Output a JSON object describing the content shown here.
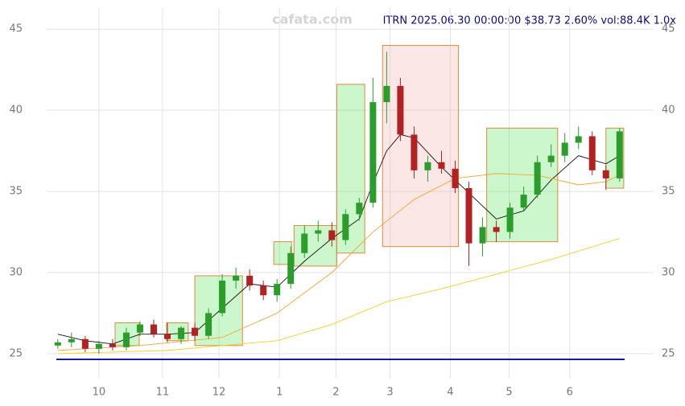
{
  "chart_data": {
    "type": "candlestick",
    "title": "ITRN 2025.06.30 00:00:00 $38.73 2.60% vol:88.4K 1.0x",
    "watermark": "cafata.com",
    "xlim": [
      -2,
      208
    ],
    "ylim": [
      24.5,
      46.3
    ],
    "yticks": [
      25,
      30,
      35,
      40,
      45
    ],
    "xticks": [
      {
        "value": 15,
        "label": "10"
      },
      {
        "value": 38.2,
        "label": "11"
      },
      {
        "value": 58.8,
        "label": "12"
      },
      {
        "value": 80.9,
        "label": "1"
      },
      {
        "value": 101.5,
        "label": "2"
      },
      {
        "value": 121.2,
        "label": "3"
      },
      {
        "value": 143.2,
        "label": "4"
      },
      {
        "value": 164.7,
        "label": "5"
      },
      {
        "value": 186.8,
        "label": "6"
      }
    ],
    "grid": true,
    "up_color": "#2a9d2a",
    "down_color": "#b22222",
    "x": [
      0,
      5,
      10,
      15,
      20,
      25,
      30,
      35,
      40,
      45,
      50,
      55,
      60,
      65,
      70,
      75,
      80,
      85,
      90,
      95,
      100,
      105,
      110,
      115,
      120,
      125,
      130,
      135,
      140,
      145,
      150,
      155,
      160,
      165,
      170,
      175,
      180,
      185,
      190,
      195,
      200,
      205
    ],
    "open": [
      25.5,
      25.7,
      25.9,
      25.3,
      25.6,
      25.4,
      26.3,
      26.8,
      26.2,
      25.9,
      26.6,
      26.1,
      27.5,
      29.5,
      29.8,
      29.2,
      28.6,
      29.3,
      31.2,
      32.4,
      32.6,
      32.0,
      33.6,
      34.3,
      40.5,
      41.5,
      38.5,
      36.3,
      36.8,
      36.4,
      35.2,
      31.8,
      32.8,
      32.5,
      34.0,
      34.8,
      36.8,
      37.2,
      38.0,
      38.4,
      36.3,
      35.8
    ],
    "high": [
      25.9,
      26.3,
      26.1,
      25.8,
      25.9,
      26.6,
      27.0,
      27.1,
      26.9,
      26.7,
      26.9,
      27.8,
      29.9,
      30.3,
      30.2,
      29.5,
      29.6,
      31.6,
      32.9,
      33.2,
      33.1,
      33.9,
      34.6,
      42.0,
      43.6,
      42.0,
      39.0,
      37.2,
      37.5,
      36.9,
      35.6,
      33.4,
      33.2,
      34.3,
      35.3,
      37.2,
      37.9,
      38.6,
      39.0,
      38.7,
      36.6,
      38.9
    ],
    "low": [
      25.3,
      25.4,
      25.1,
      25.0,
      25.2,
      25.2,
      26.1,
      26.0,
      25.7,
      25.6,
      25.8,
      25.9,
      27.3,
      29.0,
      28.9,
      28.3,
      28.2,
      29.0,
      30.9,
      31.9,
      31.6,
      31.7,
      33.2,
      34.0,
      39.2,
      38.1,
      35.8,
      35.6,
      36.1,
      34.9,
      30.4,
      31.0,
      31.9,
      32.1,
      33.8,
      34.6,
      36.5,
      36.8,
      37.6,
      36.0,
      35.1,
      35.6
    ],
    "close": [
      25.7,
      25.9,
      25.3,
      25.6,
      25.4,
      26.3,
      26.8,
      26.2,
      25.9,
      26.6,
      26.1,
      27.5,
      29.5,
      29.8,
      29.2,
      28.6,
      29.3,
      31.2,
      32.4,
      32.6,
      32.0,
      33.6,
      34.3,
      40.5,
      41.5,
      38.5,
      36.3,
      36.8,
      36.4,
      35.2,
      31.8,
      32.8,
      32.5,
      34.0,
      34.8,
      36.8,
      37.2,
      38.0,
      38.4,
      36.3,
      35.8,
      38.7
    ],
    "lines": [
      {
        "color": "#111111",
        "x": [
          0,
          10,
          20,
          30,
          40,
          50,
          60,
          70,
          80,
          90,
          100,
          110,
          115,
          120,
          125,
          130,
          140,
          150,
          160,
          170,
          180,
          190,
          200,
          205
        ],
        "values": [
          26.2,
          25.8,
          25.6,
          26.2,
          26.2,
          26.3,
          27.8,
          29.3,
          29.1,
          30.7,
          32.1,
          33.3,
          35.5,
          37.5,
          38.5,
          38.3,
          36.5,
          34.9,
          33.3,
          33.8,
          35.7,
          37.2,
          36.7,
          37.2
        ]
      },
      {
        "color": "#f0a830",
        "x": [
          0,
          30,
          60,
          80,
          100,
          115,
          130,
          145,
          160,
          175,
          190,
          200,
          205
        ],
        "values": [
          25.2,
          25.5,
          26.0,
          27.5,
          30.0,
          32.5,
          34.5,
          35.8,
          36.1,
          36.0,
          35.4,
          35.6,
          36.0
        ]
      },
      {
        "color": "#f5d020",
        "x": [
          0,
          40,
          80,
          100,
          120,
          140,
          160,
          180,
          205
        ],
        "values": [
          25.0,
          25.2,
          25.8,
          26.8,
          28.2,
          29.0,
          29.9,
          30.8,
          32.1
        ]
      }
    ],
    "boxes": [
      {
        "x0": 20.9,
        "x1": 29.7,
        "low": 25.5,
        "high": 26.9,
        "color": "#33dd33"
      },
      {
        "x0": 39.7,
        "x1": 47.6,
        "low": 25.8,
        "high": 26.9,
        "color": "#33dd33"
      },
      {
        "x0": 50.0,
        "x1": 67.4,
        "low": 25.5,
        "high": 29.8,
        "color": "#33dd33"
      },
      {
        "x0": 78.8,
        "x1": 85.3,
        "low": 30.5,
        "high": 31.9,
        "color": "#33dd33"
      },
      {
        "x0": 86.2,
        "x1": 101.8,
        "low": 30.4,
        "high": 32.9,
        "color": "#33dd33"
      },
      {
        "x0": 101.8,
        "x1": 112.0,
        "low": 31.2,
        "high": 41.6,
        "color": "#33dd33"
      },
      {
        "x0": 118.5,
        "x1": 146.2,
        "low": 31.6,
        "high": 44.0,
        "color": "#f4a0a0"
      },
      {
        "x0": 156.5,
        "x1": 182.4,
        "low": 31.9,
        "high": 38.9,
        "color": "#33dd33"
      },
      {
        "x0": 200.0,
        "x1": 206.5,
        "low": 35.2,
        "high": 38.9,
        "color": "#33dd33"
      }
    ]
  }
}
